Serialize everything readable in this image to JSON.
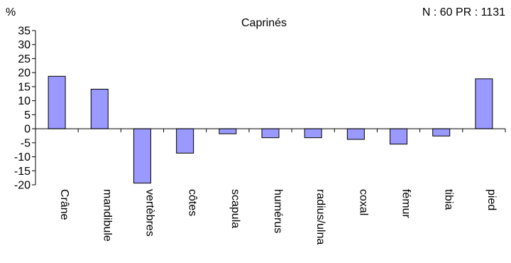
{
  "chart_data": {
    "type": "bar",
    "title": "Caprinés",
    "annotation": "N : 60 PR : 1131",
    "ylabel": "%",
    "xlabel": "",
    "ylim": [
      -20,
      35
    ],
    "yticks": [
      35,
      30,
      25,
      20,
      15,
      10,
      5,
      0,
      -5,
      -10,
      -15,
      -20
    ],
    "categories": [
      "Crâne",
      "mandibule",
      "vertèbres",
      "côtes",
      "scapula",
      "humérus",
      "radius/ulna",
      "coxal",
      "fémur",
      "tibia",
      "pied"
    ],
    "values": [
      18.7,
      14.1,
      -19.4,
      -8.7,
      -1.8,
      -3.2,
      -3.2,
      -3.8,
      -5.5,
      -2.6,
      17.8
    ],
    "bar_color": "#9999ff",
    "grid": false
  }
}
